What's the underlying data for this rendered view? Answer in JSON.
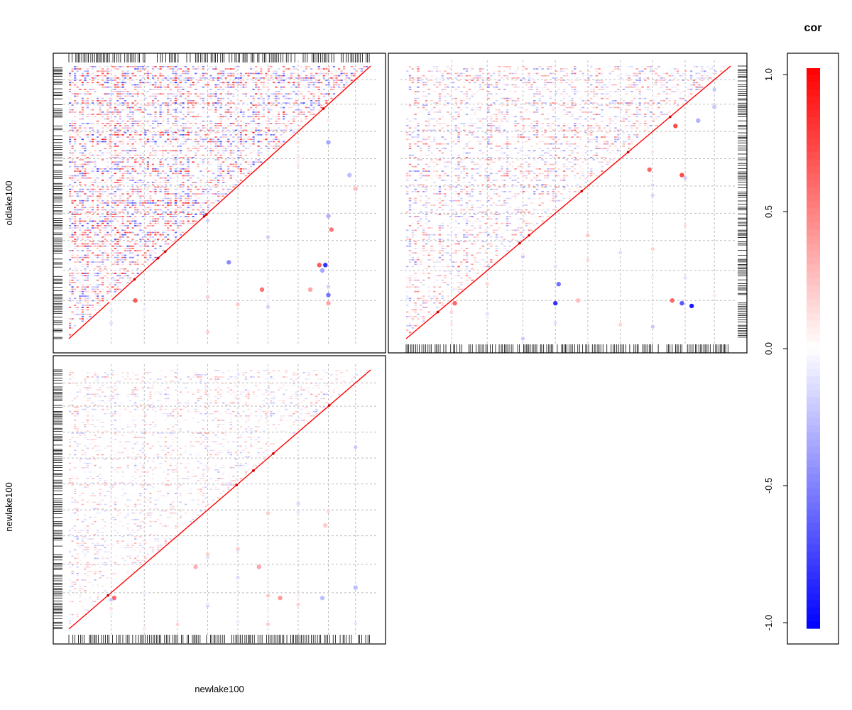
{
  "chart_data": [
    {
      "type": "heatmap",
      "panel": "top-left",
      "title": "",
      "ylabel": "oldlake100",
      "xlabel": "",
      "matrix": "lower-triangle correlation (oldlake100 vs oldlake100)",
      "grid": true,
      "diagonal_value": 1.0,
      "highlight_points": [
        {
          "x": 0.64,
          "y": 0.18,
          "value": 0.55
        },
        {
          "x": 0.8,
          "y": 0.18,
          "value": 0.35
        },
        {
          "x": 0.86,
          "y": 0.72,
          "value": -0.35
        },
        {
          "x": 0.93,
          "y": 0.6,
          "value": -0.25
        },
        {
          "x": 0.95,
          "y": 0.55,
          "value": 0.25
        },
        {
          "x": 0.87,
          "y": 0.4,
          "value": 0.55
        },
        {
          "x": 0.86,
          "y": 0.45,
          "value": -0.3
        },
        {
          "x": 0.84,
          "y": 0.25,
          "value": -0.35
        },
        {
          "x": 0.85,
          "y": 0.27,
          "value": -0.8
        },
        {
          "x": 0.83,
          "y": 0.27,
          "value": 0.65
        },
        {
          "x": 0.86,
          "y": 0.13,
          "value": 0.35
        },
        {
          "x": 0.86,
          "y": 0.16,
          "value": -0.55
        },
        {
          "x": 0.53,
          "y": 0.28,
          "value": -0.45
        },
        {
          "x": 0.22,
          "y": 0.14,
          "value": 0.65
        }
      ]
    },
    {
      "type": "heatmap",
      "panel": "top-right",
      "title": "",
      "matrix": "lower-triangle correlation (oldlake100 vs newlake100)",
      "grid": true,
      "diagonal_value": 1.0,
      "highlight_points": [
        {
          "x": 0.83,
          "y": 0.78,
          "value": 0.7
        },
        {
          "x": 0.85,
          "y": 0.6,
          "value": 0.7
        },
        {
          "x": 0.75,
          "y": 0.62,
          "value": 0.6
        },
        {
          "x": 0.9,
          "y": 0.8,
          "value": -0.3
        },
        {
          "x": 0.95,
          "y": 0.85,
          "value": -0.2
        },
        {
          "x": 0.15,
          "y": 0.13,
          "value": 0.6
        },
        {
          "x": 0.46,
          "y": 0.13,
          "value": -0.8
        },
        {
          "x": 0.47,
          "y": 0.2,
          "value": -0.55
        },
        {
          "x": 0.85,
          "y": 0.13,
          "value": -0.65
        },
        {
          "x": 0.88,
          "y": 0.12,
          "value": -0.9
        },
        {
          "x": 0.82,
          "y": 0.14,
          "value": 0.6
        },
        {
          "x": 0.53,
          "y": 0.14,
          "value": 0.25
        }
      ]
    },
    {
      "type": "heatmap",
      "panel": "bottom-left",
      "title": "",
      "ylabel": "newlake100",
      "xlabel": "newlake100",
      "matrix": "lower-triangle correlation (newlake100 vs newlake100)",
      "grid": true,
      "diagonal_value": 1.0,
      "highlight_points": [
        {
          "x": 0.15,
          "y": 0.12,
          "value": 0.6
        },
        {
          "x": 0.63,
          "y": 0.24,
          "value": 0.35
        },
        {
          "x": 0.85,
          "y": 0.4,
          "value": 0.2
        },
        {
          "x": 0.95,
          "y": 0.16,
          "value": -0.25
        },
        {
          "x": 0.84,
          "y": 0.12,
          "value": -0.25
        },
        {
          "x": 0.7,
          "y": 0.12,
          "value": 0.4
        },
        {
          "x": 0.42,
          "y": 0.24,
          "value": 0.3
        }
      ]
    },
    {
      "type": "colorbar",
      "title": "cor",
      "ylim": [
        -1.0,
        1.0
      ],
      "ticks": [
        "-1.0",
        "-0.5",
        "0.0",
        "0.5",
        "1.0"
      ],
      "colors": {
        "low": "#0000ff",
        "mid": "#ffffff",
        "high": "#ff0000"
      }
    }
  ]
}
